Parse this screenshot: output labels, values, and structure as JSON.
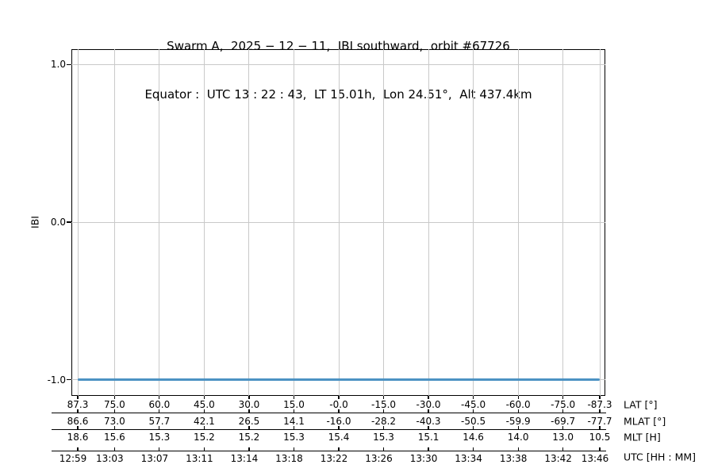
{
  "title": {
    "line1": "Swarm A,  2025 − 12 − 11,  IBI southward,  orbit #67726",
    "line2": "Equator :  UTC 13 : 22 : 43,  LT 15.01h,  Lon 24.51°,  Alt 437.4km"
  },
  "chart_data": {
    "type": "line",
    "title": "Swarm A, 2025-12-11, IBI southward, orbit #67726",
    "subtitle": "Equator: UTC 13:22:43, LT 15.01h, Lon 24.51°, Alt 437.4km",
    "ylabel": "IBI",
    "ylim": [
      -1.1,
      1.1
    ],
    "ytick_labels": [
      "1.0",
      "0.0",
      "-1.0"
    ],
    "ytick_values": [
      1.0,
      0.0,
      -1.0
    ],
    "grid": true,
    "series": [
      {
        "name": "IBI",
        "constant_value": -1.0,
        "note": "flat horizontal line at IBI = -1.0 spanning the full orbit segment"
      }
    ],
    "tick_latitudes": [
      87.3,
      75.0,
      60.0,
      45.0,
      30.0,
      15.0,
      0.0,
      -15.0,
      -30.0,
      -45.0,
      -60.0,
      -75.0,
      -87.3
    ],
    "x_axis_rows": [
      {
        "label": "LAT [°]",
        "values": [
          "87.3",
          "75.0",
          "60.0",
          "45.0",
          "30.0",
          "15.0",
          "-0.0",
          "-15.0",
          "-30.0",
          "-45.0",
          "-60.0",
          "-75.0",
          "-87.3"
        ]
      },
      {
        "label": "MLAT [°]",
        "values": [
          "86.6",
          "73.0",
          "57.7",
          "42.1",
          "26.5",
          "14.1",
          "-16.0",
          "-28.2",
          "-40.3",
          "-50.5",
          "-59.9",
          "-69.7",
          "-77.7"
        ]
      },
      {
        "label": "MLT [H]",
        "values": [
          "18.6",
          "15.6",
          "15.3",
          "15.2",
          "15.2",
          "15.3",
          "15.4",
          "15.3",
          "15.1",
          "14.6",
          "14.0",
          "13.0",
          "10.5"
        ]
      },
      {
        "label": "UTC [HH : MM]",
        "values": [
          "12:59",
          "13:03",
          "13:07",
          "13:11",
          "13:14",
          "13:18",
          "13:22",
          "13:26",
          "13:30",
          "13:34",
          "13:38",
          "13:42",
          "13:46"
        ]
      }
    ],
    "colors": {
      "line": "#4c92c3",
      "grid": "#c9c9c9",
      "axis": "#000000",
      "text": "#000000"
    },
    "legend": null
  }
}
